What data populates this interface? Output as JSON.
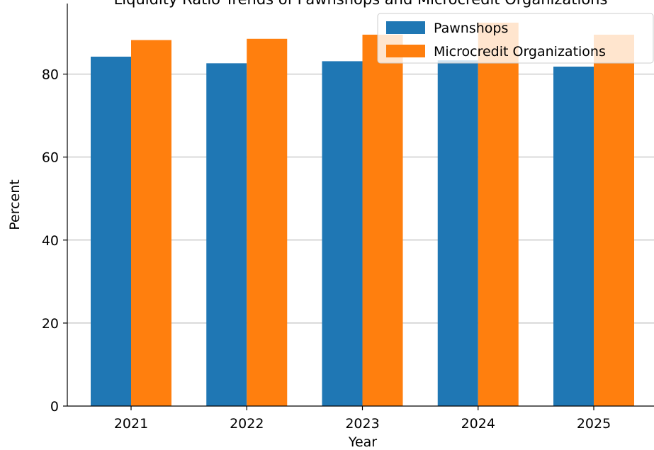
{
  "chart_data": {
    "type": "bar",
    "title": "Liquidity Ratio Trends of Pawnshops and Microcredit Organizations",
    "xlabel": "Year",
    "ylabel": "Percent",
    "categories": [
      "2021",
      "2022",
      "2023",
      "2024",
      "2025"
    ],
    "series": [
      {
        "name": "Pawnshops",
        "color": "#1f77b4",
        "values": [
          84.2,
          82.6,
          83.1,
          83.3,
          81.8
        ]
      },
      {
        "name": "Microcredit Organizations",
        "color": "#ff7f0e",
        "values": [
          88.2,
          88.5,
          89.5,
          92.4,
          89.5
        ]
      }
    ],
    "ylim": [
      0,
      97
    ],
    "yticks": [
      0,
      20,
      40,
      60,
      80
    ],
    "grid": "horizontal",
    "legend_position": "top-right"
  }
}
